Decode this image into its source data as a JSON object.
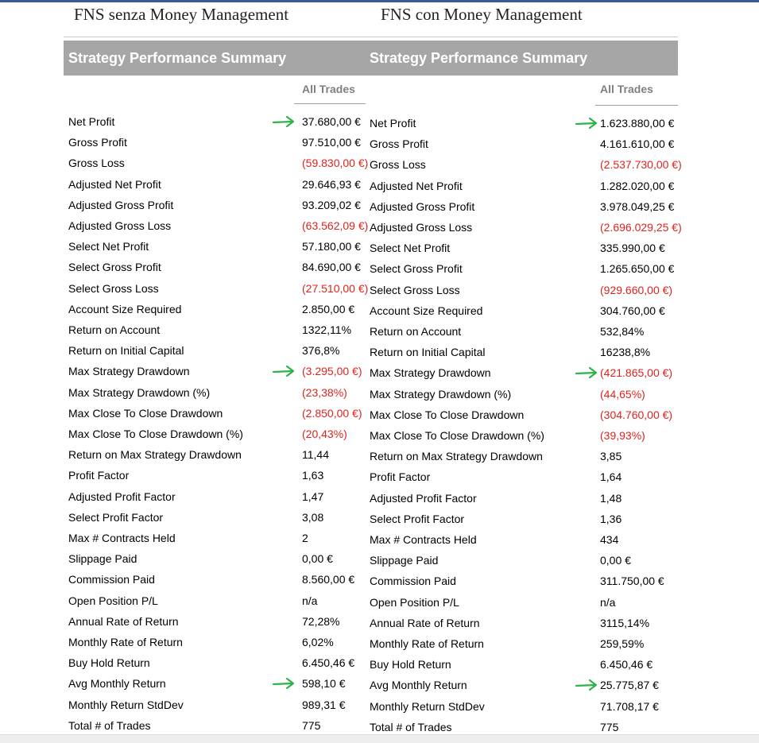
{
  "headings": {
    "left": "FNS senza Money Management",
    "right": "FNS con Money Management"
  },
  "panels": [
    {
      "title": "Strategy Performance Summary",
      "column_header": "All Trades",
      "rows": [
        {
          "label": "Net Profit",
          "value": "37.680,00 €",
          "negative": false,
          "arrow": true
        },
        {
          "label": "Gross Profit",
          "value": "97.510,00 €",
          "negative": false,
          "arrow": false
        },
        {
          "label": "Gross Loss",
          "value": "(59.830,00 €)",
          "negative": true,
          "arrow": false
        },
        {
          "label": "Adjusted Net Profit",
          "value": "29.646,93 €",
          "negative": false,
          "arrow": false
        },
        {
          "label": "Adjusted Gross Profit",
          "value": "93.209,02 €",
          "negative": false,
          "arrow": false
        },
        {
          "label": "Adjusted Gross Loss",
          "value": "(63.562,09 €)",
          "negative": true,
          "arrow": false
        },
        {
          "label": "Select Net Profit",
          "value": "57.180,00 €",
          "negative": false,
          "arrow": false
        },
        {
          "label": "Select Gross Profit",
          "value": "84.690,00 €",
          "negative": false,
          "arrow": false
        },
        {
          "label": "Select Gross Loss",
          "value": "(27.510,00 €)",
          "negative": true,
          "arrow": false
        },
        {
          "label": "Account Size Required",
          "value": "2.850,00 €",
          "negative": false,
          "arrow": false
        },
        {
          "label": "Return on Account",
          "value": "1322,11%",
          "negative": false,
          "arrow": false
        },
        {
          "label": "Return on Initial Capital",
          "value": "376,8%",
          "negative": false,
          "arrow": false
        },
        {
          "label": "Max Strategy Drawdown",
          "value": "(3.295,00 €)",
          "negative": true,
          "arrow": true
        },
        {
          "label": "Max Strategy Drawdown (%)",
          "value": "(23,38%)",
          "negative": true,
          "arrow": false
        },
        {
          "label": "Max Close To Close Drawdown",
          "value": "(2.850,00 €)",
          "negative": true,
          "arrow": false
        },
        {
          "label": "Max Close To Close Drawdown (%)",
          "value": "(20,43%)",
          "negative": true,
          "arrow": false
        },
        {
          "label": "Return on Max Strategy Drawdown",
          "value": "11,44",
          "negative": false,
          "arrow": false
        },
        {
          "label": "Profit Factor",
          "value": "1,63",
          "negative": false,
          "arrow": false
        },
        {
          "label": "Adjusted Profit Factor",
          "value": "1,47",
          "negative": false,
          "arrow": false
        },
        {
          "label": "Select Profit Factor",
          "value": "3,08",
          "negative": false,
          "arrow": false
        },
        {
          "label": "Max # Contracts Held",
          "value": "2",
          "negative": false,
          "arrow": false
        },
        {
          "label": "Slippage Paid",
          "value": "0,00 €",
          "negative": false,
          "arrow": false
        },
        {
          "label": "Commission Paid",
          "value": "8.560,00 €",
          "negative": false,
          "arrow": false
        },
        {
          "label": "Open Position P/L",
          "value": "n/a",
          "negative": false,
          "arrow": false
        },
        {
          "label": "Annual Rate of Return",
          "value": "72,28%",
          "negative": false,
          "arrow": false
        },
        {
          "label": "Monthly Rate of Return",
          "value": "6,02%",
          "negative": false,
          "arrow": false
        },
        {
          "label": "Buy  Hold Return",
          "value": "6.450,46 €",
          "negative": false,
          "arrow": false
        },
        {
          "label": "Avg Monthly Return",
          "value": "598,10 €",
          "negative": false,
          "arrow": true
        },
        {
          "label": "Monthly Return StdDev",
          "value": "989,31 €",
          "negative": false,
          "arrow": false
        },
        {
          "label": "Total # of Trades",
          "value": "775",
          "negative": false,
          "arrow": false
        }
      ]
    },
    {
      "title": "Strategy Performance Summary",
      "column_header": "All Trades",
      "rows": [
        {
          "label": "Net Profit",
          "value": "1.623.880,00 €",
          "negative": false,
          "arrow": true
        },
        {
          "label": "Gross Profit",
          "value": "4.161.610,00 €",
          "negative": false,
          "arrow": false
        },
        {
          "label": "Gross Loss",
          "value": "(2.537.730,00 €)",
          "negative": true,
          "arrow": false
        },
        {
          "label": "Adjusted Net Profit",
          "value": "1.282.020,00 €",
          "negative": false,
          "arrow": false
        },
        {
          "label": "Adjusted Gross Profit",
          "value": "3.978.049,25 €",
          "negative": false,
          "arrow": false
        },
        {
          "label": "Adjusted Gross Loss",
          "value": "(2.696.029,25 €)",
          "negative": true,
          "arrow": false
        },
        {
          "label": "Select Net Profit",
          "value": "335.990,00 €",
          "negative": false,
          "arrow": false
        },
        {
          "label": "Select Gross Profit",
          "value": "1.265.650,00 €",
          "negative": false,
          "arrow": false
        },
        {
          "label": "Select Gross Loss",
          "value": "(929.660,00 €)",
          "negative": true,
          "arrow": false
        },
        {
          "label": "Account Size Required",
          "value": "304.760,00 €",
          "negative": false,
          "arrow": false
        },
        {
          "label": "Return on Account",
          "value": "532,84%",
          "negative": false,
          "arrow": false
        },
        {
          "label": "Return on Initial Capital",
          "value": "16238,8%",
          "negative": false,
          "arrow": false
        },
        {
          "label": "Max Strategy Drawdown",
          "value": "(421.865,00 €)",
          "negative": true,
          "arrow": true
        },
        {
          "label": "Max Strategy Drawdown (%)",
          "value": "(44,65%)",
          "negative": true,
          "arrow": false
        },
        {
          "label": "Max Close To Close Drawdown",
          "value": "(304.760,00 €)",
          "negative": true,
          "arrow": false
        },
        {
          "label": "Max Close To Close Drawdown (%)",
          "value": "(39,93%)",
          "negative": true,
          "arrow": false
        },
        {
          "label": "Return on Max Strategy Drawdown",
          "value": "3,85",
          "negative": false,
          "arrow": false
        },
        {
          "label": "Profit Factor",
          "value": "1,64",
          "negative": false,
          "arrow": false
        },
        {
          "label": "Adjusted Profit Factor",
          "value": "1,48",
          "negative": false,
          "arrow": false
        },
        {
          "label": "Select Profit Factor",
          "value": "1,36",
          "negative": false,
          "arrow": false
        },
        {
          "label": "Max # Contracts Held",
          "value": "434",
          "negative": false,
          "arrow": false
        },
        {
          "label": "Slippage Paid",
          "value": "0,00 €",
          "negative": false,
          "arrow": false
        },
        {
          "label": "Commission Paid",
          "value": "311.750,00 €",
          "negative": false,
          "arrow": false
        },
        {
          "label": "Open Position P/L",
          "value": "n/a",
          "negative": false,
          "arrow": false
        },
        {
          "label": "Annual Rate of Return",
          "value": "3115,14%",
          "negative": false,
          "arrow": false
        },
        {
          "label": "Monthly Rate of Return",
          "value": "259,59%",
          "negative": false,
          "arrow": false
        },
        {
          "label": "Buy  Hold Return",
          "value": "6.450,46 €",
          "negative": false,
          "arrow": false
        },
        {
          "label": "Avg Monthly Return",
          "value": "25.775,87 €",
          "negative": false,
          "arrow": true
        },
        {
          "label": "Monthly Return StdDev",
          "value": "71.708,17 €",
          "negative": false,
          "arrow": false
        },
        {
          "label": "Total # of Trades",
          "value": "775",
          "negative": false,
          "arrow": false
        }
      ]
    }
  ],
  "colors": {
    "title_bar": "#a6a6a6",
    "negative_value": "#e0231e",
    "arrow": "#2db34a",
    "column_header": "#7f7f7f"
  }
}
